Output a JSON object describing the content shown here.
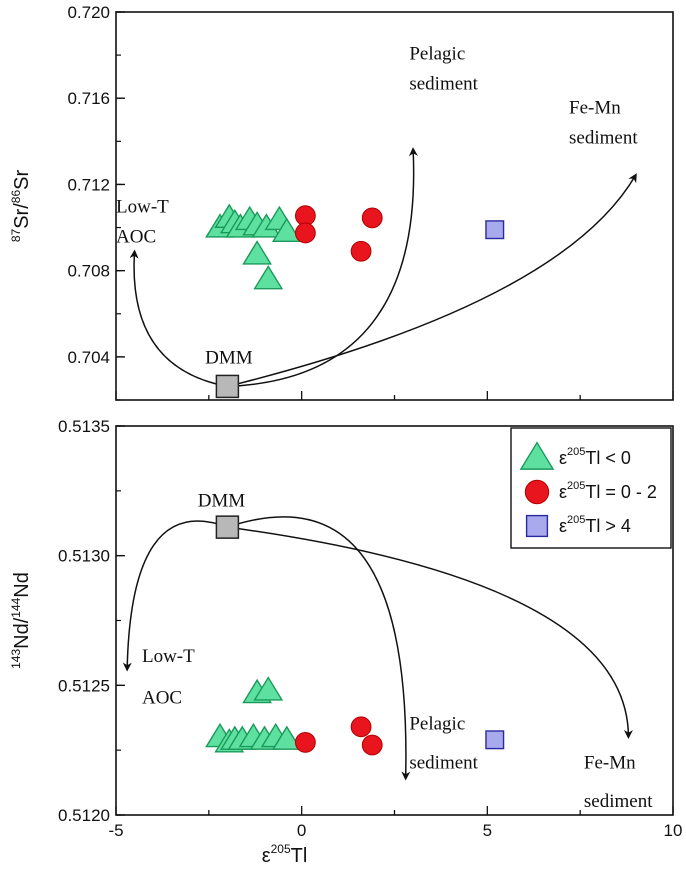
{
  "chart_data": [
    {
      "type": "scatter",
      "panel": "top",
      "ylabel": {
        "sup1": "87",
        "main1": "Sr/",
        "sup2": "86",
        "main2": "Sr"
      },
      "xlim": [
        -5,
        10
      ],
      "ylim": [
        0.702,
        0.72
      ],
      "yticks": [
        "0.704",
        "0.708",
        "0.712",
        "0.716",
        "0.720"
      ],
      "ytick_values": [
        0.704,
        0.708,
        0.712,
        0.716,
        0.72
      ],
      "series": [
        {
          "name": "ε205Tl < 0",
          "marker": "triangle",
          "color": "#5ee0a0",
          "stroke": "#1a9a5a",
          "points": [
            [
              -2.2,
              0.71
            ],
            [
              -1.95,
              0.71045
            ],
            [
              -1.8,
              0.7102
            ],
            [
              -1.65,
              0.71
            ],
            [
              -1.4,
              0.71035
            ],
            [
              -1.2,
              0.7101
            ],
            [
              -0.95,
              0.71
            ],
            [
              -0.6,
              0.71035
            ],
            [
              -0.4,
              0.7098
            ],
            [
              -1.2,
              0.70875
            ],
            [
              -0.9,
              0.7076
            ]
          ]
        },
        {
          "name": "ε205Tl = 0 - 2",
          "marker": "circle",
          "color": "#e8141e",
          "stroke": "#b00000",
          "points": [
            [
              0.1,
              0.71055
            ],
            [
              0.1,
              0.70975
            ],
            [
              1.9,
              0.71045
            ],
            [
              1.6,
              0.7089
            ]
          ]
        },
        {
          "name": "ε205Tl > 4",
          "marker": "square",
          "color": "#a9a9ee",
          "stroke": "#2a2aa0",
          "points": [
            [
              5.2,
              0.7099
            ]
          ]
        }
      ],
      "dmm": {
        "label": "DMM",
        "x": -2.0,
        "y": 0.70263
      },
      "curves": [
        {
          "to": "Low-T AOC",
          "end": [
            -4.5,
            0.7089
          ],
          "ctrl": [
            -4.7,
            0.7035
          ]
        },
        {
          "to": "Pelagic sediment",
          "end": [
            3.0,
            0.71365
          ],
          "ctrl": [
            3.3,
            0.703
          ]
        },
        {
          "to": "Fe-Mn sediment",
          "end": [
            9.0,
            0.71245
          ],
          "ctrl": [
            7.0,
            0.7065
          ]
        }
      ],
      "annotations": [
        {
          "text": "Low-T",
          "x": -5.0,
          "y": 0.7107
        },
        {
          "text": "AOC",
          "x": -5.0,
          "y": 0.7093
        },
        {
          "text": "Pelagic",
          "x": 2.9,
          "y": 0.7178
        },
        {
          "text": "sediment",
          "x": 2.9,
          "y": 0.7164
        },
        {
          "text": "Fe-Mn",
          "x": 7.2,
          "y": 0.7153
        },
        {
          "text": "sediment",
          "x": 7.2,
          "y": 0.7139
        },
        {
          "text": "DMM",
          "x": -2.6,
          "y": 0.7037
        }
      ]
    },
    {
      "type": "scatter",
      "panel": "bottom",
      "xlabel": {
        "main1": "ε",
        "sup": "205",
        "main2": "Tl"
      },
      "ylabel": {
        "sup1": "143",
        "main1": "Nd/",
        "sup2": "144",
        "main2": "Nd"
      },
      "xlim": [
        -5,
        10
      ],
      "ylim": [
        0.512,
        0.5135
      ],
      "xticks": [
        "-5",
        "0",
        "5",
        "10"
      ],
      "xtick_values": [
        -5,
        0,
        5,
        10
      ],
      "yticks": [
        "0.5120",
        "0.5125",
        "0.5130",
        "0.5135"
      ],
      "ytick_values": [
        0.512,
        0.5125,
        0.513,
        0.5135
      ],
      "series": [
        {
          "name": "ε205Tl < 0",
          "marker": "triangle",
          "color": "#5ee0a0",
          "stroke": "#1a9a5a",
          "points": [
            [
              -2.2,
              0.5123
            ],
            [
              -1.95,
              0.51228
            ],
            [
              -1.8,
              0.51229
            ],
            [
              -1.6,
              0.51229
            ],
            [
              -1.3,
              0.5123
            ],
            [
              -1.0,
              0.51229
            ],
            [
              -0.7,
              0.5123
            ],
            [
              -0.4,
              0.51229
            ],
            [
              -1.2,
              0.51247
            ],
            [
              -0.9,
              0.51248
            ]
          ]
        },
        {
          "name": "ε205Tl = 0 - 2",
          "marker": "circle",
          "color": "#e8141e",
          "stroke": "#b00000",
          "points": [
            [
              0.1,
              0.51228
            ],
            [
              1.6,
              0.51234
            ],
            [
              1.9,
              0.51227
            ]
          ]
        },
        {
          "name": "ε205Tl > 4",
          "marker": "square",
          "color": "#a9a9ee",
          "stroke": "#2a2aa0",
          "points": [
            [
              5.2,
              0.51229
            ]
          ]
        }
      ],
      "dmm": {
        "label": "DMM",
        "x": -2.0,
        "y": 0.51311
      },
      "curves": [
        {
          "to": "Low-T AOC",
          "end": [
            -4.7,
            0.51256
          ],
          "ctrl": [
            -4.6,
            0.51325
          ]
        },
        {
          "to": "Pelagic sediment",
          "end": [
            2.8,
            0.51214
          ],
          "ctrl": [
            3.0,
            0.51335
          ]
        },
        {
          "to": "Fe-Mn sediment",
          "end": [
            8.8,
            0.5123
          ],
          "ctrl": [
            8.8,
            0.5129
          ]
        }
      ],
      "annotations": [
        {
          "text": "Low-T",
          "x": -4.3,
          "y": 0.51259
        },
        {
          "text": "AOC",
          "x": -4.3,
          "y": 0.51243
        },
        {
          "text": "Pelagic",
          "x": 2.9,
          "y": 0.51233
        },
        {
          "text": "sediment",
          "x": 2.9,
          "y": 0.51218
        },
        {
          "text": "Fe-Mn",
          "x": 7.6,
          "y": 0.51218
        },
        {
          "text": "sediment",
          "x": 7.6,
          "y": 0.51203
        },
        {
          "text": "DMM",
          "x": -2.8,
          "y": 0.51319
        }
      ],
      "legend": {
        "placement": "top-right",
        "entries": [
          {
            "marker": "triangle",
            "color": "#5ee0a0",
            "stroke": "#1a9a5a",
            "main": "ε",
            "sup": "205",
            "rest": "Tl < 0"
          },
          {
            "marker": "circle",
            "color": "#e8141e",
            "stroke": "#b00000",
            "main": "ε",
            "sup": "205",
            "rest": "Tl = 0 - 2"
          },
          {
            "marker": "square",
            "color": "#a9a9ee",
            "stroke": "#2a2aa0",
            "main": "ε",
            "sup": "205",
            "rest": "Tl > 4"
          }
        ]
      }
    }
  ]
}
